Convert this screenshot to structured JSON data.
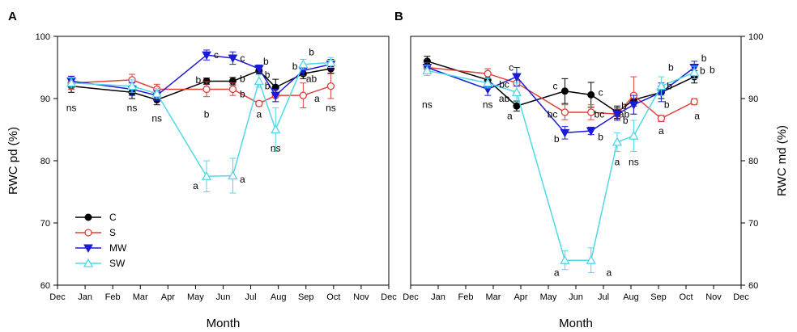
{
  "colors": {
    "C": "#000000",
    "S": "#e0413a",
    "MW": "#1a1ad8",
    "SW": "#4fd8e8"
  },
  "chart_data": [
    {
      "panel_label": "A",
      "type": "line",
      "ylabel": "RWC pd (%)",
      "xlabel": "Month",
      "ylim": [
        60,
        100
      ],
      "yticks": [
        60,
        70,
        80,
        90,
        100
      ],
      "xticks": [
        "Dec",
        "Jan",
        "Feb",
        "Mar",
        "Apr",
        "May",
        "Jun",
        "Jul",
        "Aug",
        "Sep",
        "Oct",
        "Nov",
        "Dec"
      ],
      "y_axis_side": "left",
      "legend": {
        "position": "bottom-left",
        "entries": [
          "C",
          "S",
          "MW",
          "SW"
        ]
      },
      "series": [
        {
          "name": "C",
          "marker": "circle-filled",
          "x": [
            0.5,
            2.7,
            3.6,
            5.4,
            6.35,
            7.3,
            7.9,
            8.9,
            9.9
          ],
          "y": [
            92.0,
            91.0,
            89.8,
            92.8,
            92.8,
            94.5,
            91.8,
            94.0,
            94.8
          ],
          "err": [
            1.0,
            1.0,
            0.8,
            0.5,
            0.6,
            0.5,
            1.3,
            0.8,
            0.7
          ]
        },
        {
          "name": "S",
          "marker": "circle-open",
          "x": [
            0.5,
            2.7,
            3.6,
            5.4,
            6.35,
            7.3,
            7.9,
            8.9,
            9.9
          ],
          "y": [
            92.5,
            93.0,
            91.5,
            91.5,
            91.5,
            89.2,
            90.5,
            90.5,
            92.0
          ],
          "err": [
            1.0,
            0.9,
            0.8,
            1.2,
            1.0,
            0.4,
            1.0,
            2.0,
            2.0
          ]
        },
        {
          "name": "MW",
          "marker": "triangle-down-filled",
          "x": [
            0.5,
            2.7,
            3.6,
            5.4,
            6.35,
            7.3,
            7.9,
            8.9,
            9.9
          ],
          "y": [
            92.8,
            91.5,
            90.5,
            97.0,
            96.5,
            94.8,
            90.5,
            94.5,
            95.5
          ],
          "err": [
            0.8,
            1.0,
            0.8,
            0.8,
            1.0,
            0.6,
            1.0,
            0.8,
            0.8
          ]
        },
        {
          "name": "SW",
          "marker": "triangle-up-open",
          "x": [
            0.5,
            2.7,
            3.6,
            5.4,
            6.35,
            7.3,
            7.9,
            8.9,
            9.9
          ],
          "y": [
            92.5,
            92.0,
            90.8,
            77.5,
            77.6,
            92.8,
            85.0,
            95.5,
            95.8
          ],
          "err": [
            0.8,
            1.0,
            0.8,
            2.5,
            2.8,
            1.0,
            3.5,
            0.8,
            0.8
          ]
        }
      ],
      "annotations": [
        {
          "text": "ns",
          "x": 0.5,
          "y": 88.5
        },
        {
          "text": "ns",
          "x": 2.7,
          "y": 88.5
        },
        {
          "text": "ns",
          "x": 3.6,
          "y": 86.8
        },
        {
          "text": "b",
          "x": 5.1,
          "y": 93.0
        },
        {
          "text": "c",
          "x": 5.75,
          "y": 97.0
        },
        {
          "text": "b",
          "x": 5.4,
          "y": 87.5
        },
        {
          "text": "a",
          "x": 5.0,
          "y": 76.0
        },
        {
          "text": "c",
          "x": 6.7,
          "y": 96.5
        },
        {
          "text": "b",
          "x": 6.7,
          "y": 93.2
        },
        {
          "text": "b",
          "x": 6.7,
          "y": 90.7
        },
        {
          "text": "a",
          "x": 6.7,
          "y": 77.0
        },
        {
          "text": "b",
          "x": 7.55,
          "y": 96.0
        },
        {
          "text": "b",
          "x": 7.6,
          "y": 93.8
        },
        {
          "text": "b",
          "x": 7.6,
          "y": 92.0
        },
        {
          "text": "a",
          "x": 7.3,
          "y": 87.5
        },
        {
          "text": "ns",
          "x": 7.9,
          "y": 82.0
        },
        {
          "text": "b",
          "x": 9.2,
          "y": 97.5
        },
        {
          "text": "b",
          "x": 8.6,
          "y": 95.2
        },
        {
          "text": "ab",
          "x": 9.2,
          "y": 93.2
        },
        {
          "text": "a",
          "x": 9.4,
          "y": 90.0
        },
        {
          "text": "ns",
          "x": 9.9,
          "y": 88.5
        }
      ]
    },
    {
      "panel_label": "B",
      "type": "line",
      "ylabel": "RWC md (%)",
      "xlabel": "Month",
      "ylim": [
        60,
        100
      ],
      "yticks": [
        60,
        70,
        80,
        90,
        100
      ],
      "xticks": [
        "Dec",
        "Jan",
        "Feb",
        "Mar",
        "Apr",
        "May",
        "Jun",
        "Jul",
        "Aug",
        "Sep",
        "Oct",
        "Nov",
        "Dec"
      ],
      "y_axis_side": "right",
      "series": [
        {
          "name": "C",
          "marker": "circle-filled",
          "x": [
            0.6,
            2.8,
            3.85,
            5.6,
            6.55,
            7.5,
            8.1,
            9.1,
            10.3
          ],
          "y": [
            96.0,
            93.0,
            88.8,
            91.2,
            90.6,
            87.8,
            89.8,
            91.0,
            93.5
          ],
          "err": [
            0.8,
            0.8,
            0.8,
            2.0,
            2.0,
            1.0,
            1.0,
            1.0,
            1.0
          ]
        },
        {
          "name": "S",
          "marker": "circle-open",
          "x": [
            0.6,
            2.8,
            3.85,
            5.6,
            6.55,
            7.5,
            8.1,
            9.1,
            10.3
          ],
          "y": [
            95.0,
            94.0,
            92.5,
            87.8,
            87.8,
            87.5,
            90.5,
            86.8,
            89.5
          ],
          "err": [
            0.8,
            0.8,
            1.5,
            1.2,
            1.2,
            0.8,
            3.0,
            0.5,
            0.5
          ]
        },
        {
          "name": "MW",
          "marker": "triangle-down-filled",
          "x": [
            0.6,
            2.8,
            3.85,
            5.6,
            6.55,
            7.5,
            8.1,
            9.1,
            10.3
          ],
          "y": [
            95.0,
            91.5,
            93.5,
            84.5,
            84.8,
            87.5,
            89.0,
            91.0,
            95.0
          ],
          "err": [
            0.8,
            1.0,
            1.5,
            1.0,
            0.6,
            1.0,
            1.5,
            1.5,
            1.0
          ]
        },
        {
          "name": "SW",
          "marker": "triangle-up-open",
          "x": [
            0.6,
            2.8,
            3.85,
            5.6,
            6.55,
            7.5,
            8.1,
            9.1,
            10.3
          ],
          "y": [
            94.5,
            92.5,
            91.0,
            64.0,
            64.0,
            83.0,
            84.0,
            92.0,
            94.2
          ],
          "err": [
            0.8,
            0.8,
            1.5,
            1.5,
            2.0,
            1.5,
            2.5,
            1.5,
            1.0
          ]
        }
      ],
      "annotations": [
        {
          "text": "ns",
          "x": 0.6,
          "y": 89.0
        },
        {
          "text": "ns",
          "x": 2.8,
          "y": 89.0
        },
        {
          "text": "c",
          "x": 3.65,
          "y": 95.0
        },
        {
          "text": "bc",
          "x": 3.4,
          "y": 92.3
        },
        {
          "text": "ab",
          "x": 3.4,
          "y": 90.0
        },
        {
          "text": "a",
          "x": 3.6,
          "y": 87.2
        },
        {
          "text": "c",
          "x": 5.25,
          "y": 92.0
        },
        {
          "text": "bc",
          "x": 5.15,
          "y": 87.5
        },
        {
          "text": "b",
          "x": 5.3,
          "y": 83.5
        },
        {
          "text": "a",
          "x": 5.3,
          "y": 62.0
        },
        {
          "text": "c",
          "x": 6.9,
          "y": 91.0
        },
        {
          "text": "bc",
          "x": 6.85,
          "y": 87.5
        },
        {
          "text": "b",
          "x": 6.9,
          "y": 83.8
        },
        {
          "text": "a",
          "x": 7.2,
          "y": 62.0
        },
        {
          "text": "b",
          "x": 7.75,
          "y": 88.8
        },
        {
          "text": "b",
          "x": 7.8,
          "y": 86.5
        },
        {
          "text": "ab",
          "x": 7.75,
          "y": 87.5
        },
        {
          "text": "a",
          "x": 7.5,
          "y": 79.8
        },
        {
          "text": "ns",
          "x": 8.1,
          "y": 79.8
        },
        {
          "text": "b",
          "x": 9.45,
          "y": 95.0
        },
        {
          "text": "b",
          "x": 9.4,
          "y": 92.0
        },
        {
          "text": "b",
          "x": 9.3,
          "y": 89.0
        },
        {
          "text": "a",
          "x": 9.1,
          "y": 84.8
        },
        {
          "text": "b",
          "x": 10.65,
          "y": 96.5
        },
        {
          "text": "b",
          "x": 10.6,
          "y": 94.5
        },
        {
          "text": "b",
          "x": 10.95,
          "y": 94.6
        },
        {
          "text": "a",
          "x": 10.4,
          "y": 87.2
        }
      ]
    }
  ]
}
